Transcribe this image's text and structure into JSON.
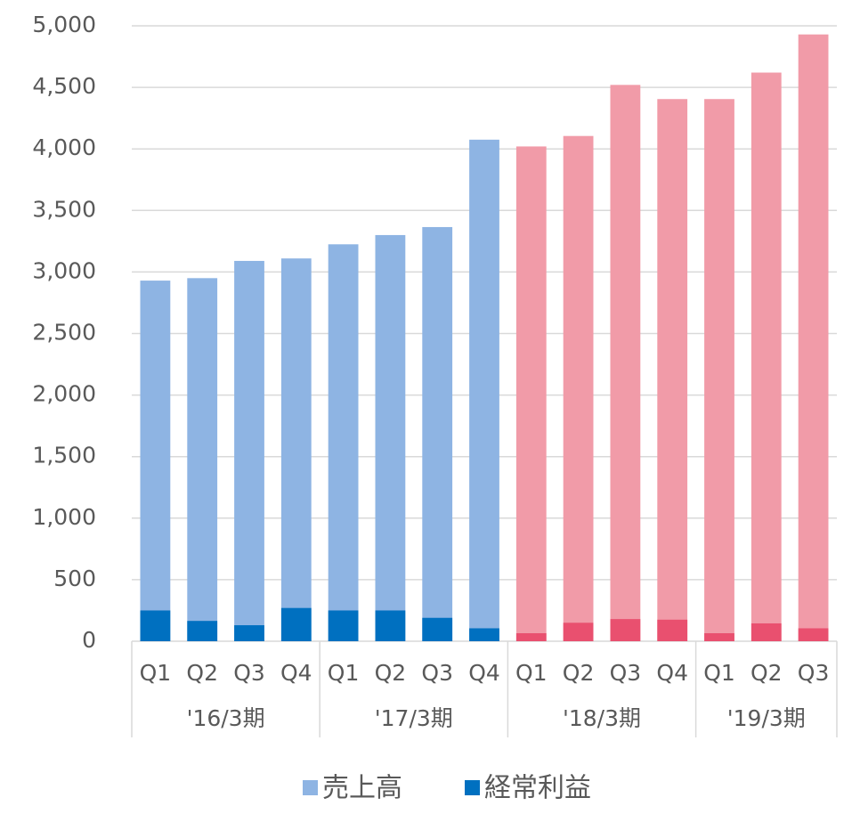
{
  "chart_data": {
    "type": "bar",
    "groups": [
      {
        "label": "'16/3期",
        "categories": [
          "Q1",
          "Q2",
          "Q3",
          "Q4"
        ]
      },
      {
        "label": "'17/3期",
        "categories": [
          "Q1",
          "Q2",
          "Q3",
          "Q4"
        ]
      },
      {
        "label": "'18/3期",
        "categories": [
          "Q1",
          "Q2",
          "Q3",
          "Q4"
        ]
      },
      {
        "label": "'19/3期",
        "categories": [
          "Q1",
          "Q2",
          "Q3"
        ]
      }
    ],
    "series": [
      {
        "name": "売上高",
        "color": "#8eb4e3",
        "colors": [
          "#8eb4e3",
          "#8eb4e3",
          "#8eb4e3",
          "#8eb4e3",
          "#8eb4e3",
          "#8eb4e3",
          "#8eb4e3",
          "#8eb4e3",
          "#f19ba8",
          "#f19ba8",
          "#f19ba8",
          "#f19ba8",
          "#f19ba8",
          "#f19ba8",
          "#f19ba8"
        ],
        "values": [
          2930,
          2950,
          3090,
          3110,
          3225,
          3300,
          3365,
          4075,
          4020,
          4105,
          4520,
          4405,
          4405,
          4620,
          4930
        ]
      },
      {
        "name": "経常利益",
        "color": "#0070c0",
        "colors": [
          "#0070c0",
          "#0070c0",
          "#0070c0",
          "#0070c0",
          "#0070c0",
          "#0070c0",
          "#0070c0",
          "#0070c0",
          "#e9506f",
          "#e9506f",
          "#e9506f",
          "#e9506f",
          "#e9506f",
          "#e9506f",
          "#e9506f"
        ],
        "values": [
          250,
          165,
          130,
          270,
          250,
          250,
          190,
          105,
          65,
          150,
          180,
          175,
          65,
          145,
          105
        ]
      }
    ],
    "ylim": [
      0,
      5000
    ],
    "yticks": [
      0,
      500,
      {
        "value": 1000,
        "label": "1,000"
      },
      {
        "value": 1500,
        "label": "1,500"
      },
      {
        "value": 2000,
        "label": "2,000"
      },
      {
        "value": 2500,
        "label": "2,500"
      },
      {
        "value": 3000,
        "label": "3,000"
      },
      {
        "value": 3500,
        "label": "3,500"
      },
      {
        "value": 4000,
        "label": "4,000"
      },
      {
        "value": 4500,
        "label": "4,500"
      },
      {
        "value": 5000,
        "label": "5,000"
      }
    ],
    "grid": true,
    "legend": "bottom"
  }
}
